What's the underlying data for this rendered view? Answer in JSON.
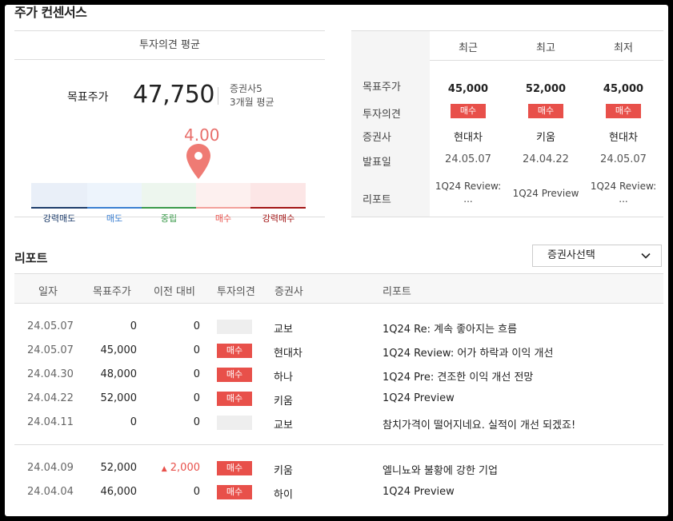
{
  "section_title": "주가 컨센서스",
  "average": {
    "header": "투자의견 평균",
    "target_label": "목표주가",
    "target_value": "47,750",
    "firms": "증권사5",
    "period": "3개월 평균",
    "score": "4.00",
    "scale_labels": [
      "강력매도",
      "매도",
      "중립",
      "매수",
      "강력매수"
    ],
    "score_position_fraction": 0.6
  },
  "recent": {
    "columns": [
      "최근",
      "최고",
      "최저"
    ],
    "row_labels": [
      "목표주가",
      "투자의견",
      "증권사",
      "발표일",
      "리포트"
    ],
    "cells": [
      {
        "price": "45,000",
        "opinion": "매수",
        "firm": "현대차",
        "date": "24.05.07",
        "report": "1Q24 Review: ..."
      },
      {
        "price": "52,000",
        "opinion": "매수",
        "firm": "키움",
        "date": "24.04.22",
        "report": "1Q24 Preview"
      },
      {
        "price": "45,000",
        "opinion": "매수",
        "firm": "현대차",
        "date": "24.05.07",
        "report": "1Q24 Review: ..."
      }
    ]
  },
  "reports": {
    "title": "리포트",
    "filter_value": "증권사선택",
    "headers": [
      "일자",
      "목표주가",
      "이전 대비",
      "투자의견",
      "증권사",
      "리포트"
    ],
    "rows": [
      {
        "date": "24.05.07",
        "price": "0",
        "diff": "0",
        "opinion": "",
        "firm": "교보",
        "title": "1Q24 Re: 계속 좋아지는 흐름"
      },
      {
        "date": "24.05.07",
        "price": "45,000",
        "diff": "0",
        "opinion": "매수",
        "firm": "현대차",
        "title": "1Q24 Review: 어가 하락과 이익 개선"
      },
      {
        "date": "24.04.30",
        "price": "48,000",
        "diff": "0",
        "opinion": "매수",
        "firm": "하나",
        "title": "1Q24 Pre: 견조한 이익 개선 전망"
      },
      {
        "date": "24.04.22",
        "price": "52,000",
        "diff": "0",
        "opinion": "매수",
        "firm": "키움",
        "title": "1Q24 Preview"
      },
      {
        "date": "24.04.11",
        "price": "0",
        "diff": "0",
        "opinion": "",
        "firm": "교보",
        "title": "참치가격이 떨어지네요. 실적이 개선 되겠죠!"
      },
      {
        "date": "24.04.09",
        "price": "52,000",
        "diff": "2,000",
        "diff_up": true,
        "opinion": "매수",
        "firm": "키움",
        "title": "엘니뇨와 불황에 강한 기업"
      },
      {
        "date": "24.04.04",
        "price": "46,000",
        "diff": "0",
        "opinion": "매수",
        "firm": "하이",
        "title": "1Q24 Preview"
      }
    ]
  },
  "colors": {
    "accent_red": "#e8504a",
    "score_red": "#e86f6b",
    "strong_sell": "#1e3d6b",
    "sell": "#3b7fd1",
    "neutral": "#3a9a4a",
    "buy": "#e8504a",
    "strong_buy": "#a31616"
  },
  "icons": {
    "pin": "location-pin-icon",
    "dropdown": "chevron-down-icon",
    "up": "triangle-up-icon"
  }
}
